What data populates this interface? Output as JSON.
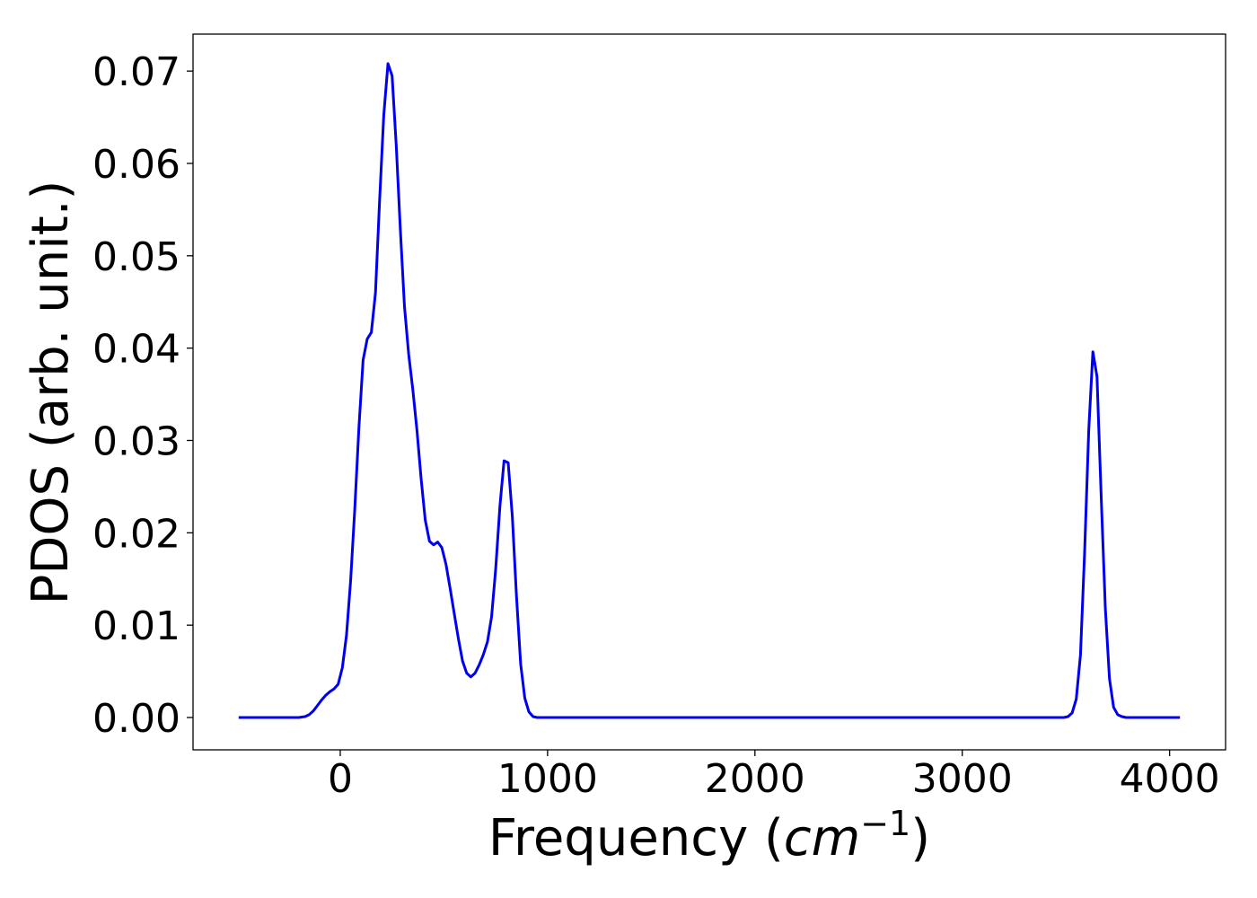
{
  "chart_data": {
    "type": "line",
    "title": "",
    "xlabel": "Frequency (",
    "xlabel_math_base": "cm",
    "xlabel_math_exp": "−1",
    "xlabel_close": ")",
    "ylabel": "PDOS (arb. unit.)",
    "xlim": [
      -710,
      4270
    ],
    "ylim": [
      -0.0035,
      0.074
    ],
    "xticks": [
      0,
      1000,
      2000,
      3000,
      4000
    ],
    "xtick_labels": [
      "0",
      "1000",
      "2000",
      "3000",
      "4000"
    ],
    "yticks": [
      0.0,
      0.01,
      0.02,
      0.03,
      0.04,
      0.05,
      0.06,
      0.07
    ],
    "ytick_labels": [
      "0.00",
      "0.01",
      "0.02",
      "0.03",
      "0.04",
      "0.05",
      "0.06",
      "0.07"
    ],
    "grid": false,
    "series": [
      {
        "color": "#0000ee",
        "x": [
          -490,
          -200,
          -170,
          -150,
          -130,
          -110,
          -90,
          -70,
          -50,
          -30,
          -10,
          10,
          30,
          50,
          70,
          90,
          110,
          130,
          150,
          170,
          190,
          210,
          230,
          250,
          270,
          290,
          310,
          330,
          350,
          370,
          390,
          410,
          430,
          450,
          470,
          490,
          510,
          530,
          550,
          570,
          590,
          610,
          630,
          650,
          670,
          690,
          710,
          730,
          750,
          770,
          790,
          810,
          830,
          850,
          870,
          890,
          910,
          930,
          950,
          970,
          990,
          1010,
          1030,
          1050,
          1080,
          3490,
          3510,
          3530,
          3550,
          3570,
          3590,
          3610,
          3630,
          3650,
          3670,
          3690,
          3710,
          3730,
          3750,
          3770,
          3790,
          4050
        ],
        "y": [
          0.0,
          0.0,
          0.0001,
          0.0003,
          0.0007,
          0.0013,
          0.0019,
          0.0024,
          0.0028,
          0.0031,
          0.0036,
          0.0054,
          0.0089,
          0.0148,
          0.0225,
          0.0313,
          0.0387,
          0.041,
          0.0417,
          0.046,
          0.056,
          0.0652,
          0.0708,
          0.0695,
          0.062,
          0.0528,
          0.0445,
          0.0393,
          0.0355,
          0.0311,
          0.0259,
          0.0214,
          0.0191,
          0.0187,
          0.019,
          0.0184,
          0.0166,
          0.014,
          0.0112,
          0.0085,
          0.0061,
          0.0048,
          0.0044,
          0.0048,
          0.0057,
          0.0068,
          0.0082,
          0.0109,
          0.0161,
          0.0229,
          0.0278,
          0.0276,
          0.0218,
          0.0132,
          0.0058,
          0.0021,
          0.0006,
          0.0001,
          0.0,
          0.0,
          0.0,
          0.0,
          0.0,
          0.0,
          0.0,
          0.0,
          0.0001,
          0.0005,
          0.002,
          0.0068,
          0.0179,
          0.0311,
          0.0396,
          0.0369,
          0.0241,
          0.0118,
          0.0042,
          0.0011,
          0.0003,
          0.0001,
          0.0,
          0.0
        ]
      }
    ]
  }
}
